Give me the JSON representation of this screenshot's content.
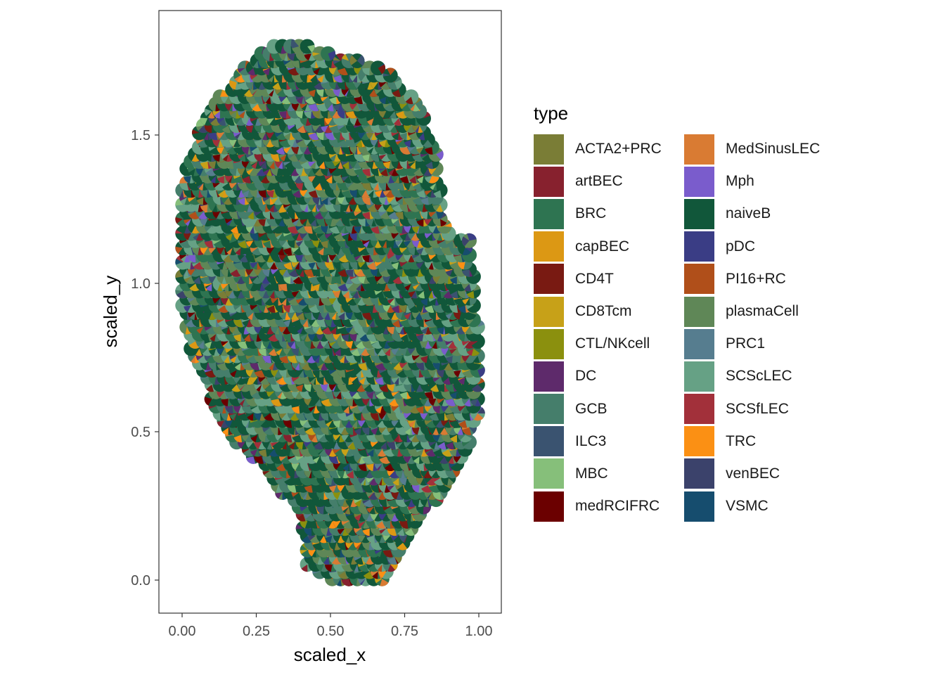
{
  "chart_data": {
    "type": "scatter",
    "description_note": "",
    "xlabel": "scaled_x",
    "ylabel": "scaled_y",
    "xlim": [
      -0.08,
      1.08
    ],
    "ylim": [
      -0.11,
      1.91
    ],
    "xticks": [
      0.0,
      0.25,
      0.5,
      0.75,
      1.0
    ],
    "xtick_labels": [
      "0.00",
      "0.25",
      "0.50",
      "0.75",
      "1.00"
    ],
    "yticks": [
      0.0,
      0.5,
      1.0,
      1.5
    ],
    "ytick_labels": [
      "0.0",
      "0.5",
      "1.0",
      "1.5"
    ],
    "grid": false,
    "legend_position": "right",
    "legend_title": "type",
    "legend": [
      {
        "name": "ACTA2+PRC",
        "color": "#7a7d36"
      },
      {
        "name": "artBEC",
        "color": "#87212e"
      },
      {
        "name": "BRC",
        "color": "#2e7451"
      },
      {
        "name": "capBEC",
        "color": "#dc9814"
      },
      {
        "name": "CD4T",
        "color": "#791a12"
      },
      {
        "name": "CD8Tcm",
        "color": "#c7a118"
      },
      {
        "name": "CTL/NKcell",
        "color": "#8b900e"
      },
      {
        "name": "DC",
        "color": "#5e2a6b"
      },
      {
        "name": "GCB",
        "color": "#457e6b"
      },
      {
        "name": "ILC3",
        "color": "#3a5370"
      },
      {
        "name": "MBC",
        "color": "#86bf7a"
      },
      {
        "name": "medRCIFRC",
        "color": "#6b0000"
      },
      {
        "name": "MedSinusLEC",
        "color": "#d97b33"
      },
      {
        "name": "Mph",
        "color": "#7a5ccc"
      },
      {
        "name": "naiveB",
        "color": "#11573a"
      },
      {
        "name": "pDC",
        "color": "#3a3d85"
      },
      {
        "name": "PI16+RC",
        "color": "#b04f1a"
      },
      {
        "name": "plasmaCell",
        "color": "#5f8757"
      },
      {
        "name": "PRC1",
        "color": "#567d8f"
      },
      {
        "name": "SCScLEC",
        "color": "#66a185"
      },
      {
        "name": "SCSfLEC",
        "color": "#a2303a"
      },
      {
        "name": "TRC",
        "color": "#fb9014"
      },
      {
        "name": "venBEC",
        "color": "#3b426b"
      },
      {
        "name": "VSMC",
        "color": "#164d6e"
      }
    ],
    "tissue_outline": [
      [
        0.0,
        1.32
      ],
      [
        0.03,
        1.45
      ],
      [
        0.1,
        1.6
      ],
      [
        0.2,
        1.72
      ],
      [
        0.3,
        1.8
      ],
      [
        0.42,
        1.8
      ],
      [
        0.55,
        1.76
      ],
      [
        0.68,
        1.73
      ],
      [
        0.8,
        1.6
      ],
      [
        0.86,
        1.45
      ],
      [
        0.88,
        1.25
      ],
      [
        0.92,
        1.15
      ],
      [
        0.97,
        1.15
      ],
      [
        0.99,
        0.95
      ],
      [
        1.01,
        0.72
      ],
      [
        1.0,
        0.55
      ],
      [
        0.95,
        0.4
      ],
      [
        0.88,
        0.3
      ],
      [
        0.8,
        0.2
      ],
      [
        0.72,
        0.08
      ],
      [
        0.68,
        0.0
      ],
      [
        0.5,
        0.0
      ],
      [
        0.42,
        0.05
      ],
      [
        0.4,
        0.2
      ],
      [
        0.3,
        0.35
      ],
      [
        0.14,
        0.5
      ],
      [
        0.08,
        0.65
      ],
      [
        0.02,
        0.8
      ],
      [
        -0.01,
        1.0
      ],
      [
        -0.01,
        1.2
      ]
    ]
  }
}
